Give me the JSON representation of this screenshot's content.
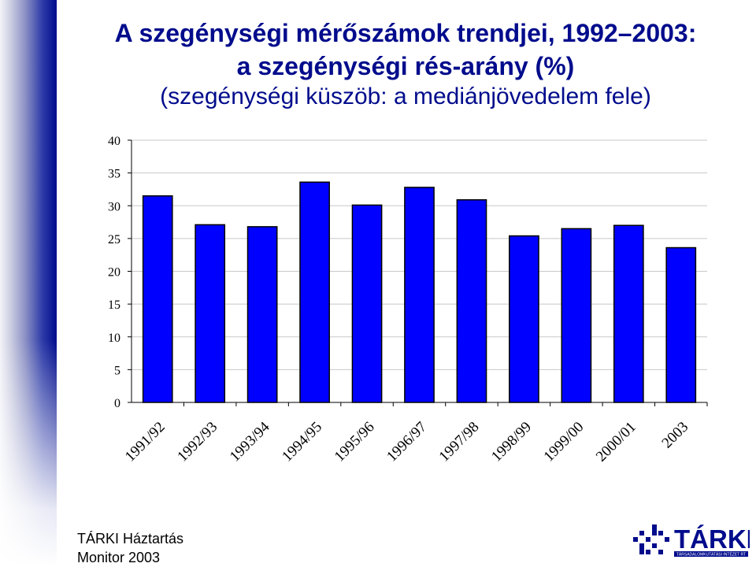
{
  "title": {
    "line1": "A szegénységi mérőszámok trendjei, 1992–2003:",
    "line2": "a szegénységi rés-arány (%)",
    "line3": "(szegénységi küszöb: a mediánjövedelem fele)"
  },
  "footer": {
    "line1": "TÁRKI Háztartás",
    "line2": "Monitor 2003"
  },
  "logo": {
    "text": "TÁRKI",
    "tagline": "TÁRSADALOMKUTATÁSI INTÉZET RT",
    "color": "#000c8c"
  },
  "chart_data": {
    "type": "bar",
    "categories": [
      "1991/92",
      "1992/93",
      "1993/94",
      "1994/95",
      "1995/96",
      "1996/97",
      "1997/98",
      "1998/99",
      "1999/00",
      "2000/01",
      "2003"
    ],
    "values": [
      31.5,
      27.1,
      26.8,
      33.6,
      30.1,
      32.8,
      30.9,
      25.4,
      26.5,
      27.0,
      23.6
    ],
    "ylim": [
      0,
      40
    ],
    "yticks": [
      "0",
      "5",
      "10",
      "15",
      "20",
      "25",
      "30",
      "35",
      "40"
    ],
    "grid": true,
    "bar_color": "#0000ff",
    "bar_edge_color": "#000000",
    "legend": "none"
  }
}
